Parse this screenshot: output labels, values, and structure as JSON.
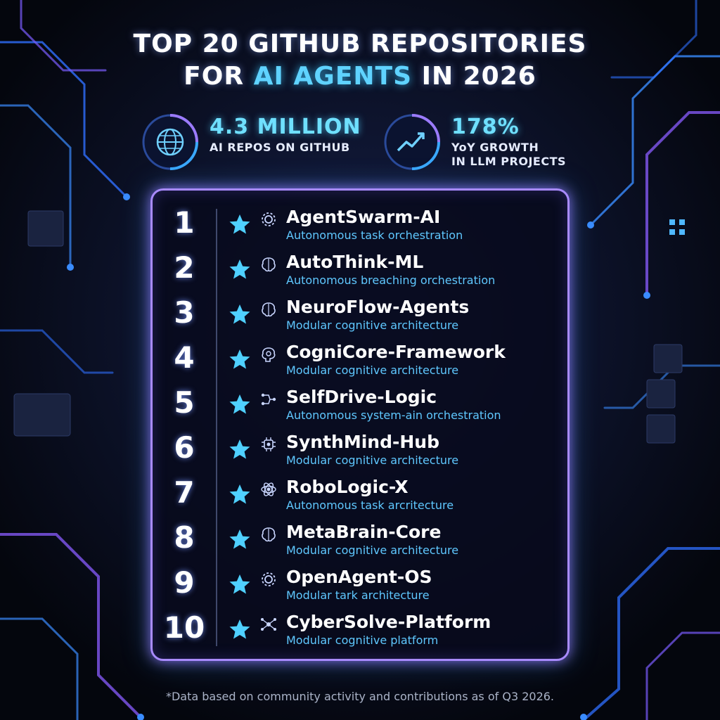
{
  "title": {
    "line1": "TOP 20 GITHUB REPOSITORIES",
    "line2_prefix": "FOR ",
    "line2_accent": "AI AGENTS",
    "line2_suffix": " IN 2026"
  },
  "stats": [
    {
      "value": "4.3 MILLION",
      "label_line1": "AI REPOS ON GITHUB",
      "label_line2": "",
      "icon": "globe-icon"
    },
    {
      "value": "178%",
      "label_line1": "YoY GROWTH",
      "label_line2": "IN LLM PROJECTS",
      "icon": "trend-up-icon"
    }
  ],
  "repos": [
    {
      "rank": "1",
      "name": "AgentSwarm-AI",
      "desc": "Autonomous task orchestration",
      "icon": "gear-icon"
    },
    {
      "rank": "2",
      "name": "AutoThink-ML",
      "desc": "Autonomous breaching orchestration",
      "icon": "brain-icon"
    },
    {
      "rank": "3",
      "name": "NeuroFlow-Agents",
      "desc": "Modular cognitive architecture",
      "icon": "brain-icon"
    },
    {
      "rank": "4",
      "name": "CogniCore-Framework",
      "desc": "Modular cognitive architecture",
      "icon": "brain-gear-icon"
    },
    {
      "rank": "5",
      "name": "SelfDrive-Logic",
      "desc": "Autonomous system-ain orchestration",
      "icon": "circuit-icon"
    },
    {
      "rank": "6",
      "name": "SynthMind-Hub",
      "desc": "Modular cognitive architecture",
      "icon": "chip-icon"
    },
    {
      "rank": "7",
      "name": "RoboLogic-X",
      "desc": "Autonomous task arcritecture",
      "icon": "atom-icon"
    },
    {
      "rank": "8",
      "name": "MetaBrain-Core",
      "desc": "Modular cognitive architecture",
      "icon": "brain-icon"
    },
    {
      "rank": "9",
      "name": "OpenAgent-OS",
      "desc": "Modular tark architecture",
      "icon": "gear-icon"
    },
    {
      "rank": "10",
      "name": "CyberSolve-Platform",
      "desc": "Modular cognitive platform",
      "icon": "network-icon"
    }
  ],
  "footnote": "*Data based on community activity and contributions as of Q3 2026.",
  "colors": {
    "accent": "#5fd3ff",
    "star": "#4fd0ff",
    "panel_border": "#a98bff",
    "background": "#05070f"
  }
}
